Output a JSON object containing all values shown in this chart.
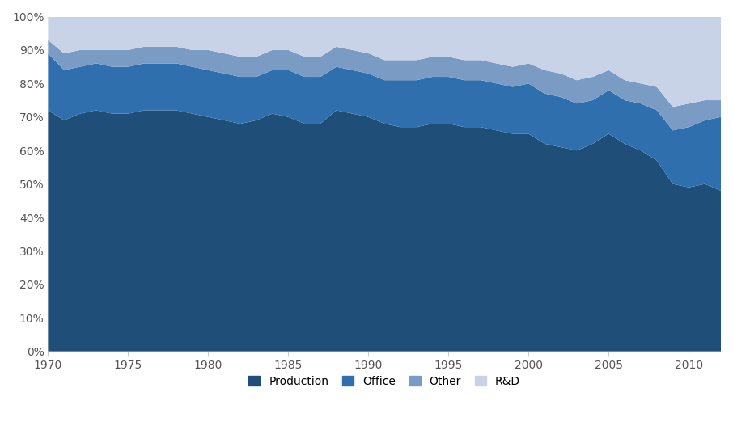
{
  "years": [
    1970,
    1971,
    1972,
    1973,
    1974,
    1975,
    1976,
    1977,
    1978,
    1979,
    1980,
    1981,
    1982,
    1983,
    1984,
    1985,
    1986,
    1987,
    1988,
    1989,
    1990,
    1991,
    1992,
    1993,
    1994,
    1995,
    1996,
    1997,
    1998,
    1999,
    2000,
    2001,
    2002,
    2003,
    2004,
    2005,
    2006,
    2007,
    2008,
    2009,
    2010,
    2011,
    2012
  ],
  "production": [
    72,
    69,
    71,
    72,
    71,
    71,
    72,
    72,
    72,
    71,
    70,
    69,
    68,
    69,
    71,
    70,
    68,
    68,
    72,
    71,
    70,
    68,
    67,
    67,
    68,
    68,
    67,
    67,
    66,
    65,
    65,
    62,
    61,
    60,
    62,
    65,
    62,
    60,
    57,
    50,
    49,
    50,
    48
  ],
  "office": [
    17,
    15,
    14,
    14,
    14,
    14,
    14,
    14,
    14,
    14,
    14,
    14,
    14,
    13,
    13,
    14,
    14,
    14,
    13,
    13,
    13,
    13,
    14,
    14,
    14,
    14,
    14,
    14,
    14,
    14,
    15,
    15,
    15,
    14,
    13,
    13,
    13,
    14,
    15,
    16,
    18,
    19,
    22
  ],
  "other": [
    4,
    5,
    5,
    4,
    5,
    5,
    5,
    5,
    5,
    5,
    6,
    6,
    6,
    6,
    6,
    6,
    6,
    6,
    6,
    6,
    6,
    6,
    6,
    6,
    6,
    6,
    6,
    6,
    6,
    6,
    6,
    7,
    7,
    7,
    7,
    6,
    6,
    6,
    7,
    7,
    7,
    6,
    5
  ],
  "rd": [
    7,
    11,
    10,
    10,
    10,
    10,
    9,
    9,
    9,
    10,
    10,
    11,
    12,
    12,
    10,
    10,
    12,
    12,
    9,
    10,
    11,
    13,
    13,
    13,
    12,
    12,
    13,
    13,
    14,
    15,
    14,
    16,
    17,
    19,
    18,
    16,
    19,
    20,
    21,
    27,
    26,
    25,
    25
  ],
  "colors": {
    "production": "#1f4e79",
    "office": "#2f6fad",
    "other": "#7a9cc4",
    "rd": "#c9d3e8"
  },
  "legend_labels": [
    "Production",
    "Office",
    "Other",
    "R&D"
  ],
  "ylim": [
    0,
    100
  ],
  "xlim": [
    1970,
    2012
  ],
  "xticks": [
    1970,
    1975,
    1980,
    1985,
    1990,
    1995,
    2000,
    2005,
    2010
  ],
  "yticks": [
    0,
    10,
    20,
    30,
    40,
    50,
    60,
    70,
    80,
    90,
    100
  ]
}
